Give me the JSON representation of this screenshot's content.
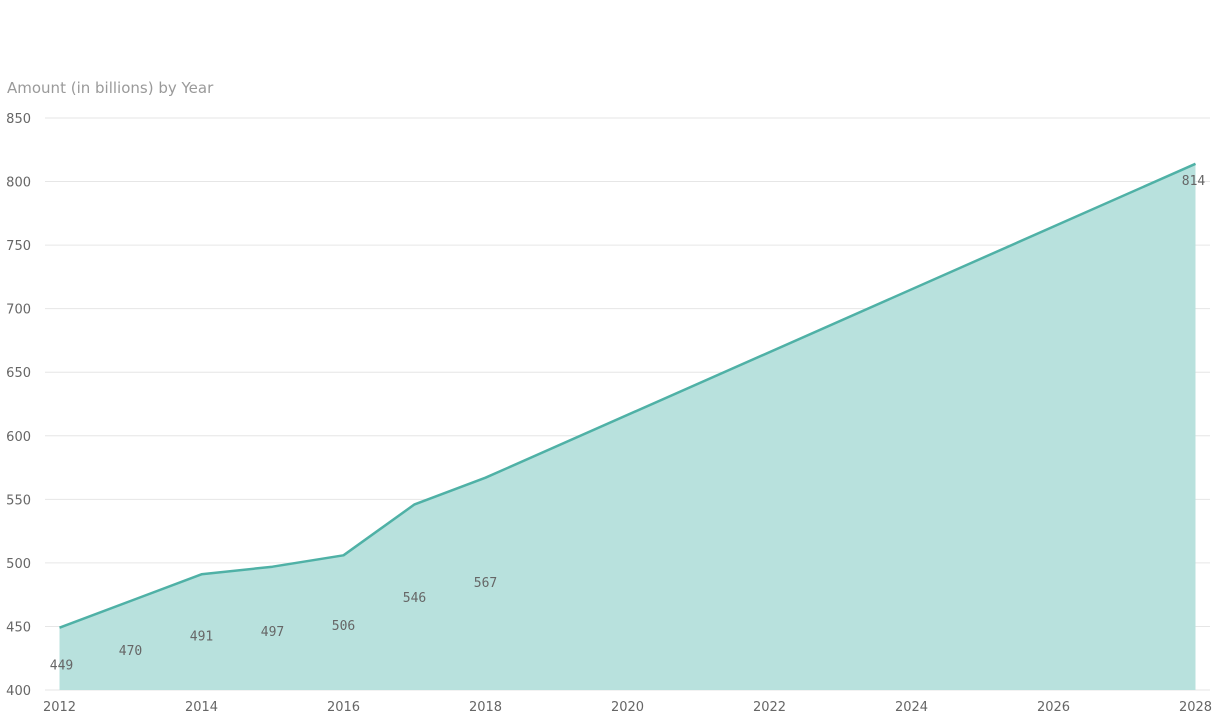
{
  "chart_data": {
    "type": "area",
    "title": "Amount (in billions) by Year",
    "xlabel": "",
    "ylabel": "",
    "x": [
      2012,
      2013,
      2014,
      2015,
      2016,
      2017,
      2018,
      2028
    ],
    "series": [
      {
        "values": [
          449,
          470,
          491,
          497,
          506,
          546,
          567,
          814
        ]
      }
    ],
    "data_labels": [
      "449",
      "470",
      "491",
      "497",
      "506",
      "546",
      "567",
      "814"
    ],
    "xlim": [
      2012,
      2028
    ],
    "ylim": [
      400,
      850
    ],
    "x_ticks": [
      "2012",
      "2014",
      "2016",
      "2018",
      "2020",
      "2022",
      "2024",
      "2026",
      "2028"
    ],
    "y_ticks": [
      "400",
      "450",
      "500",
      "550",
      "600",
      "650",
      "700",
      "750",
      "800",
      "850"
    ],
    "grid": true,
    "legend": "none",
    "colors": {
      "line": "#4fb1a6",
      "fill": "#b8e1dd",
      "grid": "#e6e6e6",
      "text": "#666666",
      "title": "#9a9a9a"
    }
  }
}
